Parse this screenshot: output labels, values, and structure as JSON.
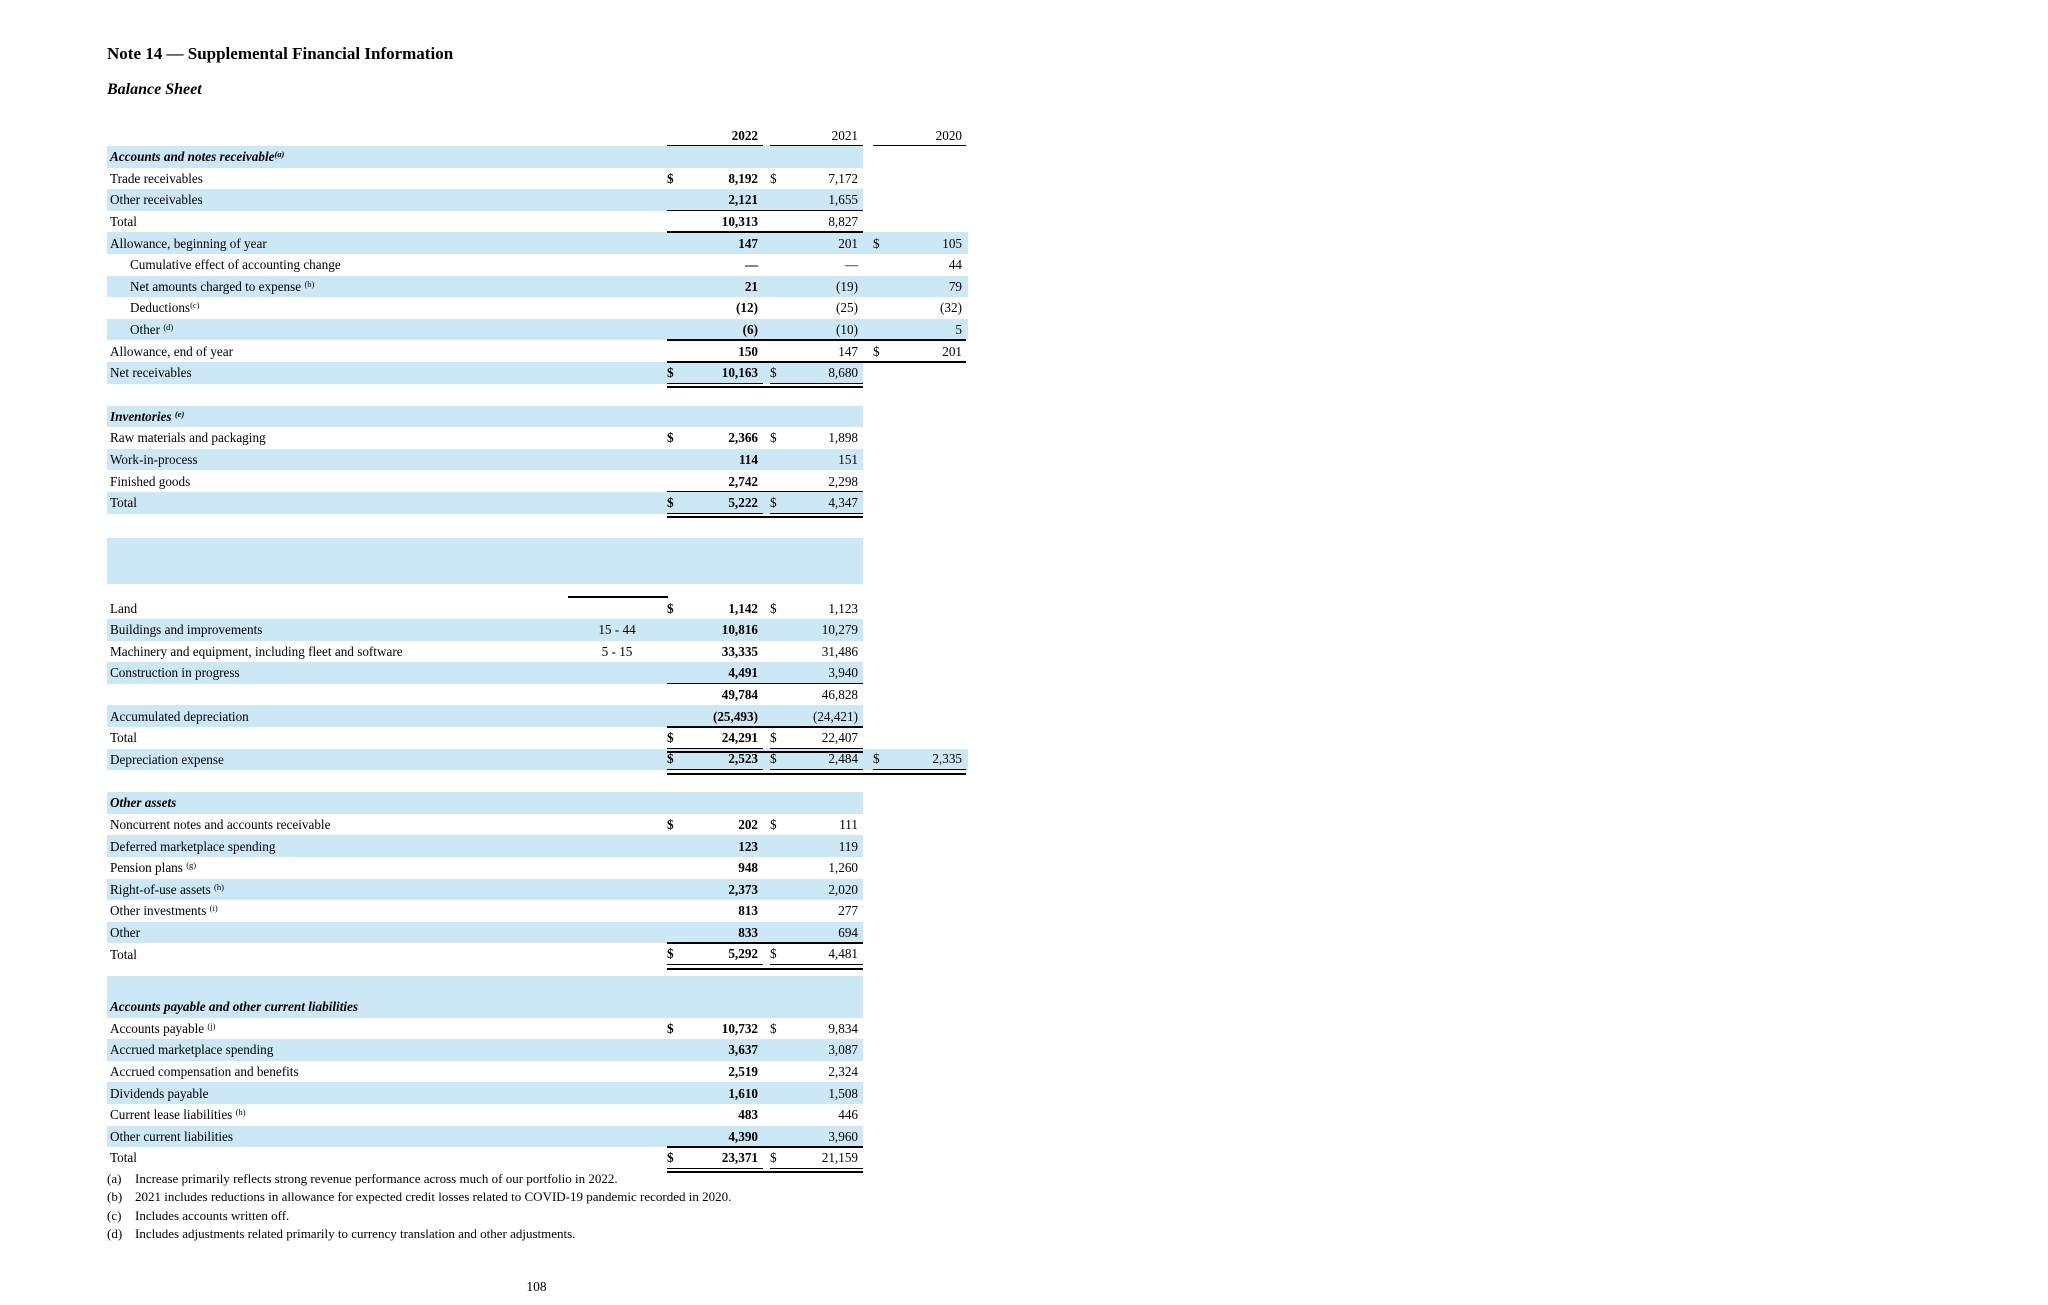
{
  "page": {
    "title": "Note 14 — Supplemental Financial Information",
    "subtitle": "Balance Sheet",
    "page_number": "108"
  },
  "colors": {
    "stripe": "#cce7f6",
    "rule": "#000000"
  },
  "table": {
    "year_headers": [
      "2022",
      "2021",
      "2020"
    ],
    "blocks": [
      {
        "kind": "years"
      },
      {
        "kind": "row",
        "header": true,
        "label": "Accounts and notes receivable",
        "sup": "(a)",
        "stripe": "short"
      },
      {
        "kind": "row",
        "label": "Trade receivables",
        "m1": [
          "$",
          "8,192"
        ],
        "m2": [
          "$",
          "7,172"
        ]
      },
      {
        "kind": "row",
        "label": "Other receivables",
        "stripe": "short",
        "m1": [
          "",
          "2,121"
        ],
        "m2": [
          "",
          "1,655"
        ],
        "rule": "u2"
      },
      {
        "kind": "row",
        "label": "Total",
        "m1": [
          "",
          "10,313"
        ],
        "m2": [
          "",
          "8,827"
        ],
        "rule": "u2"
      },
      {
        "kind": "row",
        "label": "Allowance, beginning of year",
        "stripe": "wide",
        "m1": [
          "",
          "147"
        ],
        "m2": [
          "",
          "201"
        ],
        "m3": [
          "$",
          "105"
        ]
      },
      {
        "kind": "row",
        "label": "Cumulative effect of accounting change",
        "indent": true,
        "m1": [
          "",
          "—"
        ],
        "m2": [
          "",
          "—"
        ],
        "m3": [
          "",
          "44"
        ]
      },
      {
        "kind": "row",
        "label": "Net amounts charged to expense ",
        "sup": "(b)",
        "indent": true,
        "stripe": "wide",
        "m1": [
          "",
          "21"
        ],
        "m2": [
          "",
          "(19)"
        ],
        "m3": [
          "",
          "79"
        ]
      },
      {
        "kind": "row",
        "label": "Deductions",
        "sup": "(c)",
        "indent": true,
        "m1": [
          "",
          "(12)"
        ],
        "m2": [
          "",
          "(25)"
        ],
        "m3": [
          "",
          "(32)"
        ]
      },
      {
        "kind": "row",
        "label": "Other ",
        "sup": "(d)",
        "indent": true,
        "stripe": "wide",
        "m1": [
          "",
          "(6)"
        ],
        "m2": [
          "",
          "(10)"
        ],
        "m3": [
          "",
          "5"
        ],
        "rule": "u3"
      },
      {
        "kind": "row",
        "label": "Allowance, end of year",
        "m1": [
          "",
          "150"
        ],
        "m2": [
          "",
          "147"
        ],
        "m3": [
          "$",
          "201"
        ],
        "rule": "h3"
      },
      {
        "kind": "row",
        "label": "Net receivables",
        "stripe": "short",
        "m1": [
          "$",
          "10,163"
        ],
        "m2": [
          "$",
          "8,680"
        ],
        "rule": "d2"
      },
      {
        "kind": "spacer",
        "size": "lg"
      },
      {
        "kind": "row",
        "header": true,
        "label": "Inventories ",
        "sup": "(e)",
        "stripe": "short"
      },
      {
        "kind": "row",
        "label": "Raw materials and packaging",
        "m1": [
          "$",
          "2,366"
        ],
        "m2": [
          "$",
          "1,898"
        ]
      },
      {
        "kind": "row",
        "label": "Work-in-process",
        "stripe": "short",
        "m1": [
          "",
          "114"
        ],
        "m2": [
          "",
          "151"
        ]
      },
      {
        "kind": "row",
        "label": "Finished goods",
        "m1": [
          "",
          "2,742"
        ],
        "m2": [
          "",
          "2,298"
        ],
        "rule": "u2"
      },
      {
        "kind": "row",
        "label": "Total",
        "stripe": "short",
        "m1": [
          "$",
          "5,222"
        ],
        "m2": [
          "$",
          "4,347"
        ],
        "rule": "d2"
      },
      {
        "kind": "spacer",
        "size": "xl"
      },
      {
        "kind": "blankblock"
      },
      {
        "kind": "lifestrip"
      },
      {
        "kind": "row",
        "label": "Land",
        "m1": [
          "$",
          "1,142"
        ],
        "m2": [
          "$",
          "1,123"
        ]
      },
      {
        "kind": "row",
        "label": "Buildings and improvements",
        "life": "15 - 44",
        "stripe": "short",
        "m1": [
          "",
          "10,816"
        ],
        "m2": [
          "",
          "10,279"
        ]
      },
      {
        "kind": "row",
        "label": "Machinery and equipment, including fleet and software",
        "life": "5 - 15",
        "m1": [
          "",
          "33,335"
        ],
        "m2": [
          "",
          "31,486"
        ]
      },
      {
        "kind": "row",
        "label": "Construction in progress",
        "stripe": "short",
        "m1": [
          "",
          "4,491"
        ],
        "m2": [
          "",
          "3,940"
        ],
        "rule": "u2"
      },
      {
        "kind": "row",
        "label": "",
        "m1": [
          "",
          "49,784"
        ],
        "m2": [
          "",
          "46,828"
        ]
      },
      {
        "kind": "row",
        "label": "Accumulated depreciation",
        "stripe": "short",
        "m1": [
          "",
          "(25,493)"
        ],
        "m2": [
          "",
          "(24,421)"
        ],
        "rule": "u2"
      },
      {
        "kind": "row",
        "label": "Total",
        "m1": [
          "$",
          "24,291"
        ],
        "m2": [
          "$",
          "22,407"
        ],
        "rule": "d2"
      },
      {
        "kind": "row",
        "label": "Depreciation expense",
        "stripe": "wide",
        "m1": [
          "$",
          "2,523"
        ],
        "m2": [
          "$",
          "2,484"
        ],
        "m3": [
          "$",
          "2,335"
        ],
        "rule": "d3"
      },
      {
        "kind": "spacer",
        "size": "lg"
      },
      {
        "kind": "row",
        "header": true,
        "label": "Other assets",
        "stripe": "short"
      },
      {
        "kind": "row",
        "label": "Noncurrent notes and accounts receivable",
        "m1": [
          "$",
          "202"
        ],
        "m2": [
          "$",
          "111"
        ]
      },
      {
        "kind": "row",
        "label": "Deferred marketplace spending",
        "stripe": "short",
        "m1": [
          "",
          "123"
        ],
        "m2": [
          "",
          "119"
        ]
      },
      {
        "kind": "row",
        "label": "Pension plans ",
        "sup": "(g)",
        "m1": [
          "",
          "948"
        ],
        "m2": [
          "",
          "1,260"
        ]
      },
      {
        "kind": "row",
        "label": "Right-of-use assets ",
        "sup": "(h)",
        "stripe": "short",
        "m1": [
          "",
          "2,373"
        ],
        "m2": [
          "",
          "2,020"
        ]
      },
      {
        "kind": "row",
        "label": "Other investments ",
        "sup": "(i)",
        "m1": [
          "",
          "813"
        ],
        "m2": [
          "",
          "277"
        ]
      },
      {
        "kind": "row",
        "label": "Other",
        "stripe": "short",
        "m1": [
          "",
          "833"
        ],
        "m2": [
          "",
          "694"
        ],
        "rule": "u2"
      },
      {
        "kind": "row",
        "label": "Total",
        "m1": [
          "$",
          "5,292"
        ],
        "m2": [
          "$",
          "4,481"
        ],
        "rule": "d2"
      },
      {
        "kind": "spacer",
        "size": "sm"
      },
      {
        "kind": "blankrow"
      },
      {
        "kind": "row",
        "header": true,
        "label": "Accounts payable and other current liabilities",
        "stripe": "short"
      },
      {
        "kind": "row",
        "label": "Accounts payable ",
        "sup": "(j)",
        "m1": [
          "$",
          "10,732"
        ],
        "m2": [
          "$",
          "9,834"
        ]
      },
      {
        "kind": "row",
        "label": "Accrued marketplace spending",
        "stripe": "short",
        "m1": [
          "",
          "3,637"
        ],
        "m2": [
          "",
          "3,087"
        ]
      },
      {
        "kind": "row",
        "label": "Accrued compensation and benefits",
        "m1": [
          "",
          "2,519"
        ],
        "m2": [
          "",
          "2,324"
        ]
      },
      {
        "kind": "row",
        "label": "Dividends payable",
        "stripe": "short",
        "m1": [
          "",
          "1,610"
        ],
        "m2": [
          "",
          "1,508"
        ]
      },
      {
        "kind": "row",
        "label": "Current lease liabilities ",
        "sup": "(h)",
        "m1": [
          "",
          "483"
        ],
        "m2": [
          "",
          "446"
        ]
      },
      {
        "kind": "row",
        "label": "Other current liabilities",
        "stripe": "short",
        "m1": [
          "",
          "4,390"
        ],
        "m2": [
          "",
          "3,960"
        ],
        "rule": "u2h"
      },
      {
        "kind": "row",
        "label": "Total",
        "m1": [
          "$",
          "23,371"
        ],
        "m2": [
          "$",
          "21,159"
        ],
        "rule": "d2"
      }
    ]
  },
  "footnotes": [
    {
      "marker": "(a)",
      "text": "Increase primarily reflects strong revenue performance across much of our portfolio in 2022."
    },
    {
      "marker": "(b)",
      "text": "2021 includes reductions in allowance for expected credit losses related to COVID-19 pandemic recorded in 2020."
    },
    {
      "marker": "(c)",
      "text": "Includes accounts written off."
    },
    {
      "marker": "(d)",
      "text": "Includes adjustments related primarily to currency translation and other adjustments."
    }
  ]
}
